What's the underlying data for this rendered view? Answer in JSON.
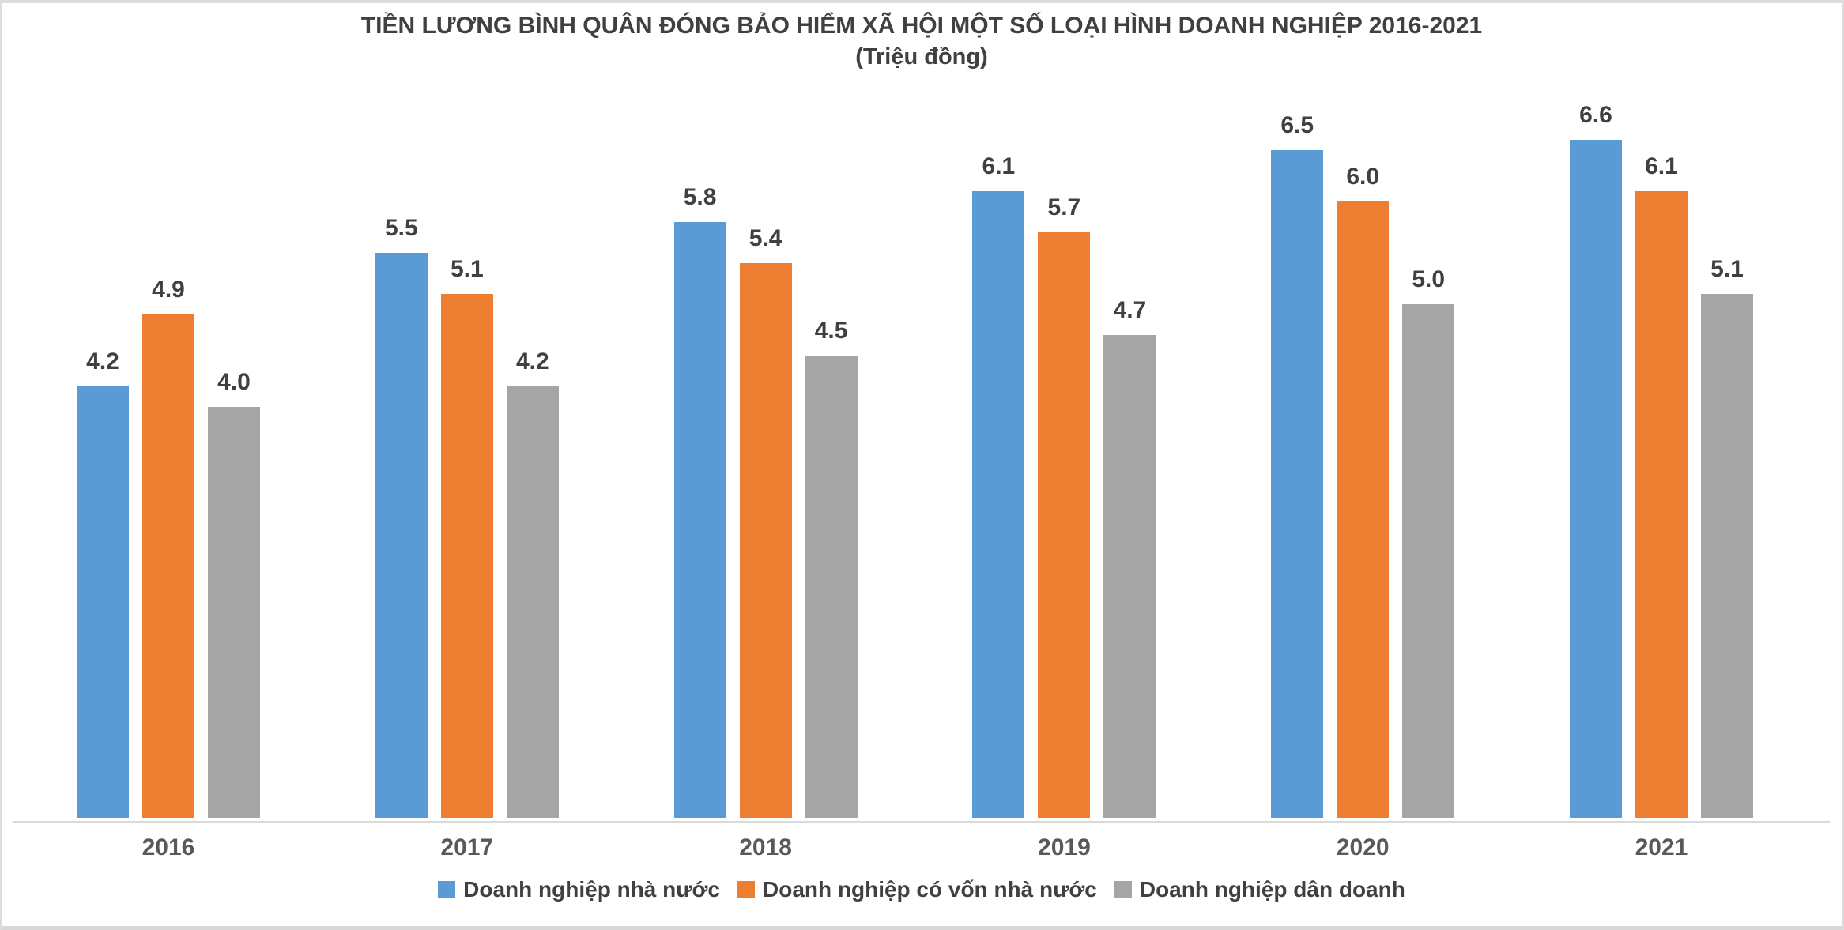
{
  "chart_data": {
    "type": "bar",
    "title": "TIỀN LƯƠNG BÌNH QUÂN ĐÓNG BẢO HIỂM XÃ HỘI MỘT SỐ LOẠI HÌNH DOANH NGHIỆP 2016-2021",
    "subtitle": "(Triệu đồng)",
    "categories": [
      "2016",
      "2017",
      "2018",
      "2019",
      "2020",
      "2021"
    ],
    "series": [
      {
        "name": "Doanh nghiệp nhà nước",
        "color": "#5B9BD5",
        "values": [
          4.2,
          5.5,
          5.8,
          6.1,
          6.5,
          6.6
        ]
      },
      {
        "name": "Doanh nghiệp có vốn nhà nước",
        "color": "#ED7D31",
        "values": [
          4.9,
          5.1,
          5.4,
          5.7,
          6.0,
          6.1
        ]
      },
      {
        "name": "Doanh nghiệp dân doanh",
        "color": "#A5A5A5",
        "values": [
          4.0,
          4.2,
          4.5,
          4.7,
          5.0,
          5.1
        ]
      }
    ],
    "value_label_decimals": 1,
    "ylim": [
      0,
      8
    ],
    "grid": false,
    "legend_position": "bottom"
  },
  "colors": {
    "title_text": "#404040",
    "value_label_text": "#404040",
    "axis_label_text": "#595959",
    "legend_text": "#404040",
    "axis_line": "#D9D9D9",
    "frame_border": "#DCDCDC",
    "bottom_band": "#D8D8D8",
    "background": "#FFFFFF"
  }
}
